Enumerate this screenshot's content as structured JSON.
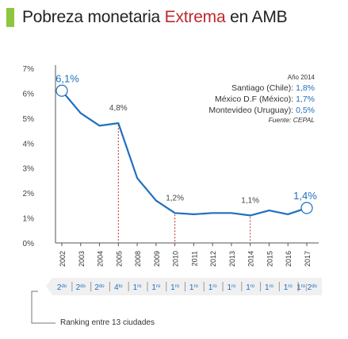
{
  "title": {
    "before": "Pobreza monetaria ",
    "highlight": "Extrema",
    "after": " en AMB"
  },
  "colors": {
    "accent": "#8dc63f",
    "highlight": "#c0272d",
    "line": "#1f6fbf",
    "marker_line": "#c0272d",
    "axis": "#555555"
  },
  "chart_data": {
    "type": "line",
    "x": [
      "2002",
      "2003",
      "2004",
      "2005",
      "2008",
      "2009",
      "2010",
      "2011",
      "2012",
      "2013",
      "2014",
      "2015",
      "2016",
      "2017"
    ],
    "values": [
      6.1,
      5.2,
      4.7,
      4.8,
      2.6,
      1.7,
      1.2,
      1.15,
      1.2,
      1.2,
      1.1,
      1.3,
      1.15,
      1.4
    ],
    "ylim": [
      0,
      7
    ],
    "yticks": [
      "0%",
      "1%",
      "2%",
      "3%",
      "4%",
      "5%",
      "6%",
      "7%"
    ],
    "point_labels": [
      {
        "index": 0,
        "text": "6,1%",
        "big": true
      },
      {
        "index": 3,
        "text": "4,8%",
        "big": false
      },
      {
        "index": 6,
        "text": "1,2%",
        "big": false
      },
      {
        "index": 10,
        "text": "1,1%",
        "big": false
      },
      {
        "index": 13,
        "text": "1,4%",
        "big": true
      }
    ],
    "circled_indices": [
      0,
      13
    ],
    "dashed_marker_indices": [
      3,
      6,
      10
    ],
    "grid": false,
    "legend": "none"
  },
  "notes": {
    "year": "Año 2014",
    "lines": [
      {
        "label": "Santiago (Chile): ",
        "value": "1,8%"
      },
      {
        "label": "México D.F (México): ",
        "value": "1,7%"
      },
      {
        "label": "Montevideo (Uruguay): ",
        "value": "0,5%"
      }
    ],
    "source": "Fuente: CEPAL"
  },
  "ranking": {
    "sups": [
      "2do",
      "2do",
      "2do",
      "4to",
      "1ro",
      "1ro",
      "1ro",
      "1ro",
      "1ro",
      "1ro",
      "1ro",
      "1ro",
      "1ro",
      "1ro"
    ],
    "num_prefix": [
      "2",
      "2",
      "2",
      "4",
      "1",
      "1",
      "1",
      "1",
      "1",
      "1",
      "1",
      "1",
      "1",
      "1"
    ],
    "last_extra": "2do",
    "caption": "Ranking entre 13 ciudades"
  }
}
